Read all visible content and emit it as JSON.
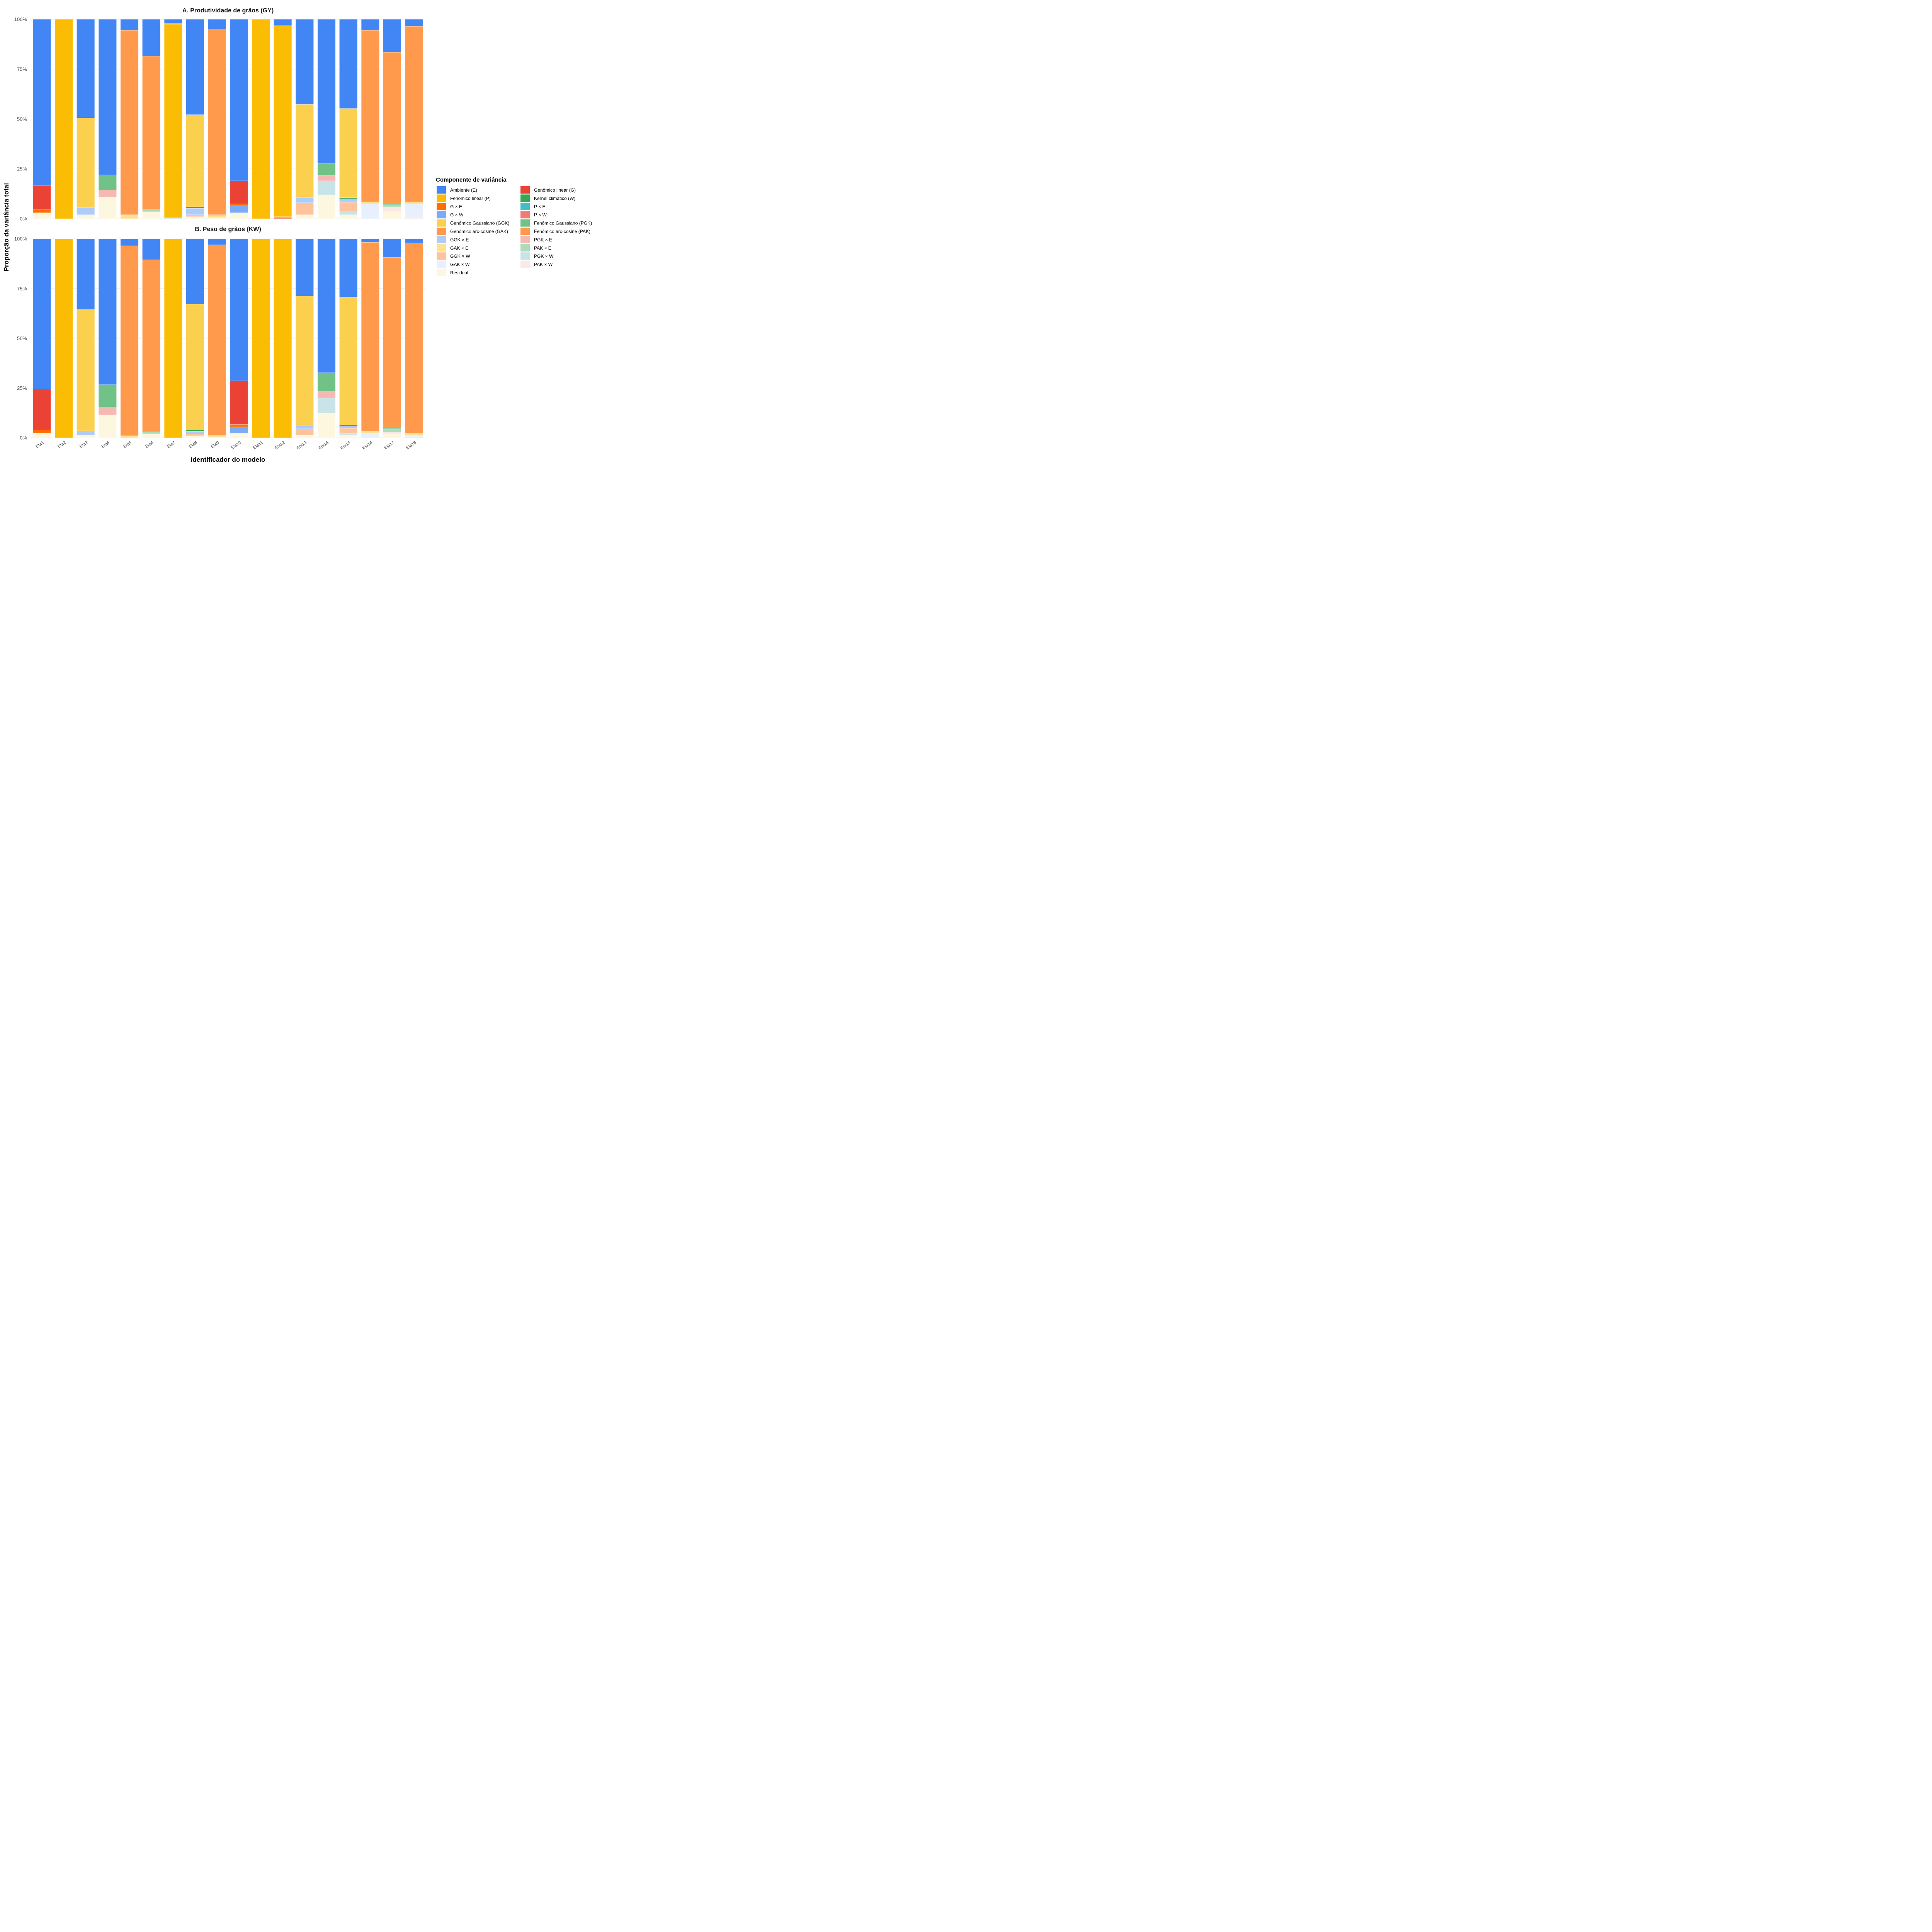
{
  "chart_data": {
    "type": "bar",
    "stacked": true,
    "xlabel": "Identificador do modelo",
    "ylabel": "Proporção da variância total",
    "ylim": [
      0,
      100
    ],
    "yticks": [
      "0%",
      "25%",
      "50%",
      "75%",
      "100%"
    ],
    "grid": true,
    "legend_position": "right",
    "categories": [
      "Eta1",
      "Eta2",
      "Eta3",
      "Eta4",
      "Eta5",
      "Eta6",
      "Eta7",
      "Eta8",
      "Eta9",
      "Eta10",
      "Eta11",
      "Eta12",
      "Eta13",
      "Eta14",
      "Eta15",
      "Eta16",
      "Eta17",
      "Eta18"
    ],
    "legend": {
      "title": "Componente de variância",
      "entries": [
        {
          "name": "Ambiente (E)",
          "color": "#4285F4"
        },
        {
          "name": "Fenômico linear (P)",
          "color": "#FBBC04"
        },
        {
          "name": "G × E",
          "color": "#FF6D00"
        },
        {
          "name": "G × W",
          "color": "#7BAAF7"
        },
        {
          "name": "Genômico Gaussiano (GGK)",
          "color": "#FCD04F"
        },
        {
          "name": "Genômico arc-cosine (GAK)",
          "color": "#FF9A4D"
        },
        {
          "name": "GGK × E",
          "color": "#AFCBFA"
        },
        {
          "name": "GAK × E",
          "color": "#FDE293"
        },
        {
          "name": "GGK × W",
          "color": "#FFC39B"
        },
        {
          "name": "GAK × W",
          "color": "#E8F0FE"
        },
        {
          "name": "Residual",
          "color": "#FEF7E0"
        },
        {
          "name": "Genômico linear (G)",
          "color": "#EA4335"
        },
        {
          "name": "Kernel climático (W)",
          "color": "#34A853"
        },
        {
          "name": "P × E",
          "color": "#46BDC6"
        },
        {
          "name": "P × W",
          "color": "#F07B72"
        },
        {
          "name": "Fenômico Gaussiano (PGK)",
          "color": "#71C287"
        },
        {
          "name": "Fenômico arc-cosine (PAK)",
          "color": "#FF994C"
        },
        {
          "name": "PGK × E",
          "color": "#F6B8B3"
        },
        {
          "name": "PAK × E",
          "color": "#AEDCBA"
        },
        {
          "name": "PGK × W",
          "color": "#C9E4E8"
        },
        {
          "name": "PAK × W",
          "color": "#FCE8E6"
        }
      ]
    },
    "panels": [
      {
        "title": "A. Produtividade de grãos (GY)",
        "stacks": [
          [
            [
              "Residual",
              3
            ],
            [
              "G × E",
              1.5
            ],
            [
              "Genômico linear (G)",
              12
            ],
            [
              "Ambiente (E)",
              83.5
            ]
          ],
          [
            [
              "Fenômico linear (P)",
              100
            ]
          ],
          [
            [
              "Residual",
              2
            ],
            [
              "GGK × E",
              3.5
            ],
            [
              "Genômico Gaussiano (GGK)",
              45
            ],
            [
              "Ambiente (E)",
              49.5
            ]
          ],
          [
            [
              "Residual",
              11
            ],
            [
              "PGK × E",
              3.5
            ],
            [
              "Fenômico Gaussiano (PGK)",
              7.5
            ],
            [
              "Ambiente (E)",
              78
            ]
          ],
          [
            [
              "GAK × E",
              2
            ],
            [
              "Genômico arc-cosine (GAK)",
              92.5
            ],
            [
              "Ambiente (E)",
              5.5
            ]
          ],
          [
            [
              "Residual",
              3.5
            ],
            [
              "PAK × E",
              1
            ],
            [
              "Fenômico arc-cosine (PAK)",
              77
            ],
            [
              "Ambiente (E)",
              18.5
            ]
          ],
          [
            [
              "PGK × W",
              0.5
            ],
            [
              "Fenômico linear (P)",
              97
            ],
            [
              "P × W",
              0.5
            ],
            [
              "Ambiente (E)",
              2
            ]
          ],
          [
            [
              "Residual",
              1
            ],
            [
              "GGK × W",
              1
            ],
            [
              "GGK × E",
              3.2
            ],
            [
              "Kernel climático (W)",
              0.8
            ],
            [
              "Genômico Gaussiano (GGK)",
              46.2
            ],
            [
              "Ambiente (E)",
              47.8
            ]
          ],
          [
            [
              "Residual",
              0.5
            ],
            [
              "GAK × E",
              1
            ],
            [
              "GGK × W",
              0.5
            ],
            [
              "Genômico arc-cosine (GAK)",
              93
            ],
            [
              "Ambiente (E)",
              5
            ]
          ],
          [
            [
              "Residual",
              3
            ],
            [
              "G × W",
              3.5
            ],
            [
              "G × E",
              1
            ],
            [
              "Genômico linear (G)",
              11.5
            ],
            [
              "Ambiente (E)",
              81
            ]
          ],
          [
            [
              "Fenômico linear (P)",
              100
            ]
          ],
          [
            [
              "P × W",
              0.7
            ],
            [
              "P × E",
              0.3
            ],
            [
              "Fenômico linear (P)",
              95.8
            ],
            [
              "G × E",
              0.4
            ],
            [
              "Ambiente (E)",
              2.8
            ]
          ],
          [
            [
              "Residual",
              2
            ],
            [
              "GGK × W",
              6
            ],
            [
              "GGK × E",
              2.5
            ],
            [
              "Genômico Gaussiano (GGK)",
              46.8
            ],
            [
              "Ambiente (E)",
              42.7
            ]
          ],
          [
            [
              "Residual",
              12
            ],
            [
              "PGK × W",
              7
            ],
            [
              "PGK × E",
              2.8
            ],
            [
              "Fenômico Gaussiano (PGK)",
              6
            ],
            [
              "Ambiente (E)",
              72.2
            ]
          ],
          [
            [
              "Residual",
              2
            ],
            [
              "PGK × W",
              1.5
            ],
            [
              "GGK × W",
              4.5
            ],
            [
              "PGK × E",
              0.5
            ],
            [
              "GGK × E",
              1.5
            ],
            [
              "Kernel climático (W)",
              0.5
            ],
            [
              "Genômico Gaussiano (GGK)",
              44.8
            ],
            [
              "Ambiente (E)",
              44.7
            ]
          ],
          [
            [
              "GAK × W",
              7.5
            ],
            [
              "GAK × E",
              1
            ],
            [
              "Genômico arc-cosine (GAK)",
              86
            ],
            [
              "Ambiente (E)",
              5.5
            ]
          ],
          [
            [
              "Residual",
              3.5
            ],
            [
              "PAK × W",
              2.5
            ],
            [
              "PAK × E",
              1
            ],
            [
              "Fenômico Gaussiano (PGK)",
              0.5
            ],
            [
              "Fenômico arc-cosine (PAK)",
              76
            ],
            [
              "Ambiente (E)",
              16.5
            ]
          ],
          [
            [
              "PAK × W",
              0.5
            ],
            [
              "GAK × W",
              7
            ],
            [
              "GAK × E",
              1
            ],
            [
              "Genômico arc-cosine (GAK)",
              88
            ],
            [
              "Ambiente (E)",
              3.5
            ]
          ]
        ]
      },
      {
        "title": "B. Peso de grãos (KW)",
        "stacks": [
          [
            [
              "Residual",
              2.5
            ],
            [
              "G × E",
              1.5
            ],
            [
              "Genômico linear (G)",
              20.5
            ],
            [
              "Ambiente (E)",
              75.5
            ]
          ],
          [
            [
              "Fenômico linear (P)",
              100
            ]
          ],
          [
            [
              "Residual",
              1.5
            ],
            [
              "GGK × E",
              2
            ],
            [
              "Genômico Gaussiano (GGK)",
              61
            ],
            [
              "Ambiente (E)",
              35.5
            ]
          ],
          [
            [
              "Residual",
              11.5
            ],
            [
              "PGK × E",
              4
            ],
            [
              "Fenômico Gaussiano (PGK)",
              11.2
            ],
            [
              "Ambiente (E)",
              73.3
            ]
          ],
          [
            [
              "GAK × E",
              1
            ],
            [
              "Genômico arc-cosine (GAK)",
              95.5
            ],
            [
              "Ambiente (E)",
              3.5
            ]
          ],
          [
            [
              "Residual",
              2
            ],
            [
              "PAK × E",
              1
            ],
            [
              "Fenômico arc-cosine (PAK)",
              86.5
            ],
            [
              "Ambiente (E)",
              10.5
            ]
          ],
          [
            [
              "Fenômico linear (P)",
              100
            ]
          ],
          [
            [
              "Residual",
              1
            ],
            [
              "GGK × W",
              0.8
            ],
            [
              "GGK × E",
              1.5
            ],
            [
              "Kernel climático (W)",
              0.7
            ],
            [
              "Genômico Gaussiano (GGK)",
              63.2
            ],
            [
              "Ambiente (E)",
              32.8
            ]
          ],
          [
            [
              "Residual",
              0.5
            ],
            [
              "GAK × E",
              0.5
            ],
            [
              "GGK × W",
              0.5
            ],
            [
              "Genômico arc-cosine (GAK)",
              95.5
            ],
            [
              "Ambiente (E)",
              3
            ]
          ],
          [
            [
              "Residual",
              2.5
            ],
            [
              "G × W",
              3
            ],
            [
              "G × E",
              1.2
            ],
            [
              "Genômico linear (G)",
              22
            ],
            [
              "Ambiente (E)",
              71.3
            ]
          ],
          [
            [
              "Fenômico linear (P)",
              100
            ]
          ],
          [
            [
              "Fenômico linear (P)",
              100
            ]
          ],
          [
            [
              "Residual",
              1.5
            ],
            [
              "GGK × W",
              3
            ],
            [
              "GGK × E",
              1.5
            ],
            [
              "Genômico Gaussiano (GGK)",
              65.2
            ],
            [
              "Ambiente (E)",
              28.8
            ]
          ],
          [
            [
              "Residual",
              12.5
            ],
            [
              "PGK × W",
              7.5
            ],
            [
              "PGK × E",
              3.2
            ],
            [
              "Fenômico Gaussiano (PGK)",
              9.5
            ],
            [
              "Ambiente (E)",
              67.3
            ]
          ],
          [
            [
              "Residual",
              1.5
            ],
            [
              "PGK × W",
              0.8
            ],
            [
              "GGK × W",
              2.5
            ],
            [
              "GGK × E",
              1.2
            ],
            [
              "Kernel climático (W)",
              0.5
            ],
            [
              "Genômico Gaussiano (GGK)",
              64.2
            ],
            [
              "Ambiente (E)",
              29.3
            ]
          ],
          [
            [
              "GAK × W",
              2.5
            ],
            [
              "GAK × E",
              0.7
            ],
            [
              "Genômico arc-cosine (GAK)",
              95
            ],
            [
              "Ambiente (E)",
              1.8
            ]
          ],
          [
            [
              "Residual",
              2
            ],
            [
              "PAK × W",
              0.8
            ],
            [
              "PAK × E",
              1.5
            ],
            [
              "Fenômico Gaussiano (PGK)",
              0.5
            ],
            [
              "Fenômico arc-cosine (PAK)",
              85.8
            ],
            [
              "Ambiente (E)",
              9.4
            ]
          ],
          [
            [
              "PAK × W",
              0.5
            ],
            [
              "GAK × W",
              1
            ],
            [
              "GAK × E",
              0.7
            ],
            [
              "Genômico arc-cosine (GAK)",
              95.8
            ],
            [
              "Ambiente (E)",
              2
            ]
          ]
        ]
      }
    ]
  }
}
